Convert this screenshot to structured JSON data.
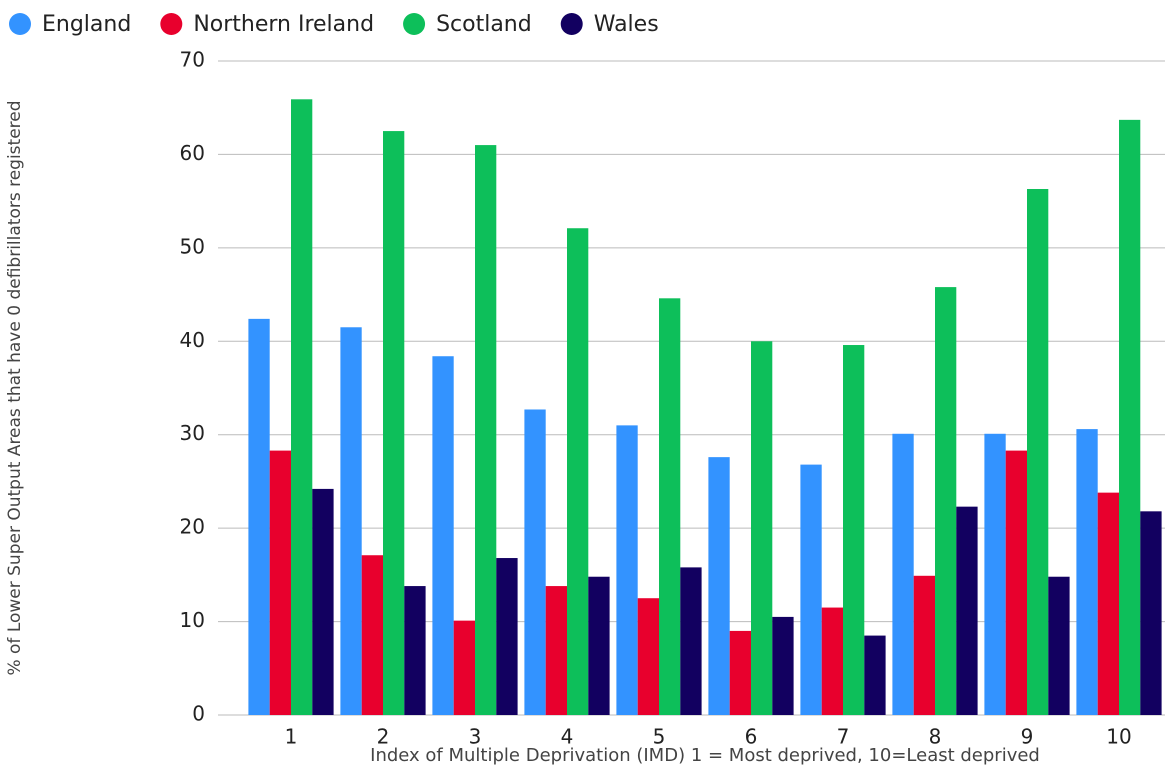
{
  "chart_data": {
    "type": "bar",
    "y_label": "% of Lower Super Output Areas that have 0 defibrillators registered",
    "x_label": "Index of Multiple Deprivation (IMD) 1 = Most deprived, 10=Least deprived",
    "categories": [
      "1",
      "2",
      "3",
      "4",
      "5",
      "6",
      "7",
      "8",
      "9",
      "10"
    ],
    "series": [
      {
        "name": "England",
        "color": "#3393ff",
        "values": [
          42.4,
          41.5,
          38.4,
          32.7,
          31.0,
          27.6,
          26.8,
          30.1,
          30.1,
          30.6
        ]
      },
      {
        "name": "Northern Ireland",
        "color": "#e8002d",
        "values": [
          28.3,
          17.1,
          10.1,
          13.8,
          12.5,
          9.0,
          11.5,
          14.9,
          28.3,
          23.8
        ]
      },
      {
        "name": "Scotland",
        "color": "#0dbf5a",
        "values": [
          65.9,
          62.5,
          61.0,
          52.1,
          44.6,
          40.0,
          39.6,
          45.8,
          56.3,
          63.7
        ]
      },
      {
        "name": "Wales",
        "color": "#120060",
        "values": [
          24.2,
          13.8,
          16.8,
          14.8,
          15.8,
          10.5,
          8.5,
          22.3,
          14.8,
          21.8
        ]
      }
    ],
    "ylim": [
      0,
      70
    ],
    "yticks": [
      0,
      10,
      20,
      30,
      40,
      50,
      60,
      70
    ],
    "grid": true,
    "legend": "top"
  }
}
